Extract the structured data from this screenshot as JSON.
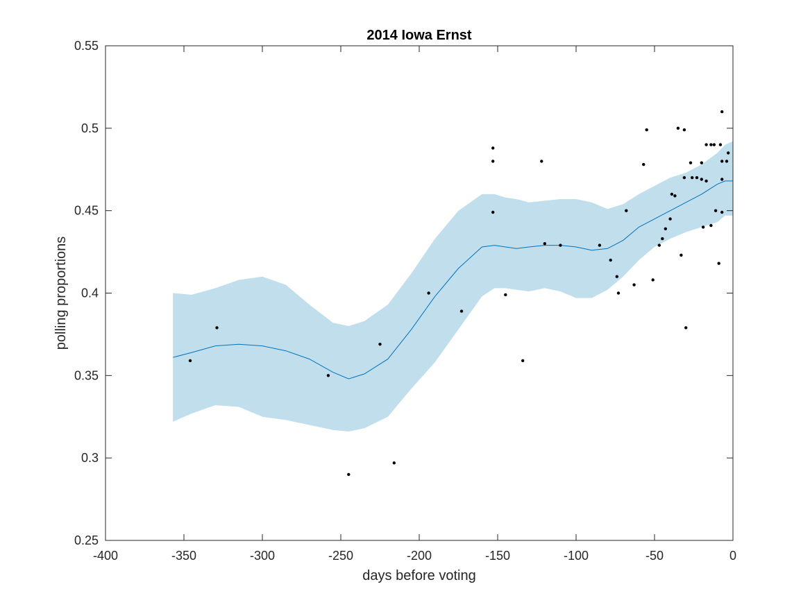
{
  "chart_data": {
    "type": "scatter",
    "title": "2014 Iowa Ernst",
    "xlabel": "days before voting",
    "ylabel": "polling proportions",
    "xlim": [
      -400,
      0
    ],
    "ylim": [
      0.25,
      0.55
    ],
    "xticks": [
      -400,
      -350,
      -300,
      -250,
      -200,
      -150,
      -100,
      -50,
      0
    ],
    "yticks": [
      0.25,
      0.3,
      0.35,
      0.4,
      0.45,
      0.5,
      0.55
    ],
    "xtick_labels": [
      "-400",
      "-350",
      "-300",
      "-250",
      "-200",
      "-150",
      "-100",
      "-50",
      "0"
    ],
    "ytick_labels": [
      "0.25",
      "0.3",
      "0.35",
      "0.4",
      "0.45",
      "0.5",
      "0.55"
    ],
    "grid": false,
    "colors": {
      "band": "#c1deed",
      "line": "#0072bd",
      "points": "#000000",
      "axes": "#262626"
    },
    "fit": {
      "x": [
        -357,
        -345,
        -330,
        -315,
        -300,
        -285,
        -270,
        -255,
        -245,
        -235,
        -220,
        -205,
        -190,
        -175,
        -160,
        -152,
        -145,
        -138,
        -130,
        -120,
        -110,
        -100,
        -90,
        -80,
        -70,
        -60,
        -50,
        -40,
        -30,
        -20,
        -10,
        -5,
        0
      ],
      "mean": [
        0.361,
        0.364,
        0.368,
        0.369,
        0.368,
        0.365,
        0.36,
        0.352,
        0.348,
        0.351,
        0.36,
        0.378,
        0.398,
        0.415,
        0.428,
        0.429,
        0.428,
        0.427,
        0.428,
        0.429,
        0.429,
        0.428,
        0.426,
        0.427,
        0.432,
        0.44,
        0.445,
        0.45,
        0.455,
        0.46,
        0.466,
        0.468,
        0.468
      ],
      "lower": [
        0.322,
        0.327,
        0.332,
        0.331,
        0.325,
        0.323,
        0.32,
        0.317,
        0.316,
        0.318,
        0.325,
        0.342,
        0.358,
        0.378,
        0.398,
        0.403,
        0.403,
        0.402,
        0.401,
        0.403,
        0.401,
        0.397,
        0.397,
        0.402,
        0.41,
        0.42,
        0.428,
        0.433,
        0.437,
        0.44,
        0.443,
        0.447,
        0.447
      ],
      "upper": [
        0.4,
        0.399,
        0.403,
        0.408,
        0.41,
        0.405,
        0.393,
        0.382,
        0.38,
        0.383,
        0.393,
        0.412,
        0.433,
        0.45,
        0.46,
        0.46,
        0.458,
        0.457,
        0.455,
        0.456,
        0.457,
        0.457,
        0.455,
        0.451,
        0.454,
        0.46,
        0.465,
        0.47,
        0.473,
        0.478,
        0.485,
        0.49,
        0.492
      ]
    },
    "points": [
      {
        "x": -346,
        "y": 0.359
      },
      {
        "x": -329,
        "y": 0.379
      },
      {
        "x": -258,
        "y": 0.35
      },
      {
        "x": -245,
        "y": 0.29
      },
      {
        "x": -225,
        "y": 0.369
      },
      {
        "x": -216,
        "y": 0.297
      },
      {
        "x": -194,
        "y": 0.4
      },
      {
        "x": -173,
        "y": 0.389
      },
      {
        "x": -153,
        "y": 0.488
      },
      {
        "x": -153,
        "y": 0.48
      },
      {
        "x": -153,
        "y": 0.449
      },
      {
        "x": -145,
        "y": 0.399
      },
      {
        "x": -134,
        "y": 0.359
      },
      {
        "x": -122,
        "y": 0.48
      },
      {
        "x": -120,
        "y": 0.43
      },
      {
        "x": -110,
        "y": 0.429
      },
      {
        "x": -85,
        "y": 0.429
      },
      {
        "x": -78,
        "y": 0.42
      },
      {
        "x": -74,
        "y": 0.41
      },
      {
        "x": -73,
        "y": 0.4
      },
      {
        "x": -68,
        "y": 0.45
      },
      {
        "x": -63,
        "y": 0.405
      },
      {
        "x": -57,
        "y": 0.478
      },
      {
        "x": -55,
        "y": 0.499
      },
      {
        "x": -51,
        "y": 0.408
      },
      {
        "x": -47,
        "y": 0.429
      },
      {
        "x": -45,
        "y": 0.433
      },
      {
        "x": -43,
        "y": 0.439
      },
      {
        "x": -40,
        "y": 0.445
      },
      {
        "x": -39,
        "y": 0.46
      },
      {
        "x": -37,
        "y": 0.459
      },
      {
        "x": -35,
        "y": 0.5
      },
      {
        "x": -33,
        "y": 0.423
      },
      {
        "x": -31,
        "y": 0.499
      },
      {
        "x": -31,
        "y": 0.47
      },
      {
        "x": -30,
        "y": 0.379
      },
      {
        "x": -27,
        "y": 0.479
      },
      {
        "x": -26,
        "y": 0.47
      },
      {
        "x": -23,
        "y": 0.47
      },
      {
        "x": -20,
        "y": 0.479
      },
      {
        "x": -20,
        "y": 0.469
      },
      {
        "x": -19,
        "y": 0.44
      },
      {
        "x": -17,
        "y": 0.49
      },
      {
        "x": -17,
        "y": 0.468
      },
      {
        "x": -14,
        "y": 0.49
      },
      {
        "x": -14,
        "y": 0.441
      },
      {
        "x": -12,
        "y": 0.49
      },
      {
        "x": -11,
        "y": 0.45
      },
      {
        "x": -9,
        "y": 0.418
      },
      {
        "x": -8,
        "y": 0.49
      },
      {
        "x": -7,
        "y": 0.51
      },
      {
        "x": -7,
        "y": 0.48
      },
      {
        "x": -7,
        "y": 0.469
      },
      {
        "x": -7,
        "y": 0.449
      },
      {
        "x": -4,
        "y": 0.48
      },
      {
        "x": -3,
        "y": 0.485
      }
    ]
  }
}
